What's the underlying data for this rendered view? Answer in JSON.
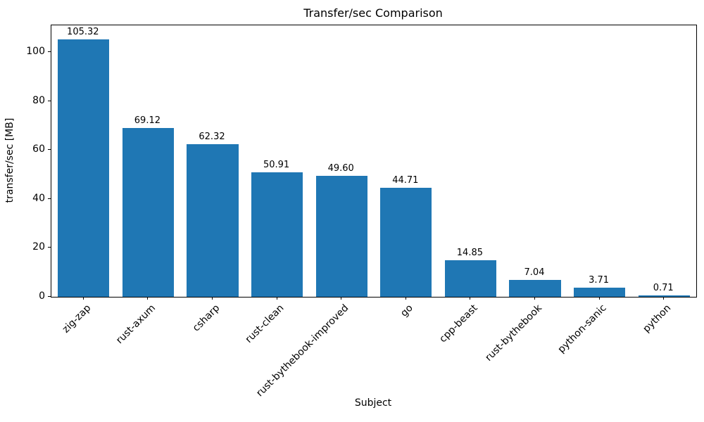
{
  "chart_data": {
    "type": "bar",
    "title": "Transfer/sec Comparison",
    "xlabel": "Subject",
    "ylabel": "transfer/sec [MB]",
    "categories": [
      "zig-zap",
      "rust-axum",
      "csharp",
      "rust-clean",
      "rust-bythebook-improved",
      "go",
      "cpp-beast",
      "rust-bythebook",
      "python-sanic",
      "python"
    ],
    "values": [
      105.32,
      69.12,
      62.32,
      50.91,
      49.6,
      44.71,
      14.85,
      7.04,
      3.71,
      0.71
    ],
    "value_labels": [
      "105.32",
      "69.12",
      "62.32",
      "50.91",
      "49.60",
      "44.71",
      "14.85",
      "7.04",
      "3.71",
      "0.71"
    ],
    "yticks": [
      0,
      20,
      40,
      60,
      80,
      100
    ],
    "ylim": [
      0,
      111
    ],
    "bar_color": "#1f77b4",
    "grid": false,
    "legend_position": "none"
  }
}
